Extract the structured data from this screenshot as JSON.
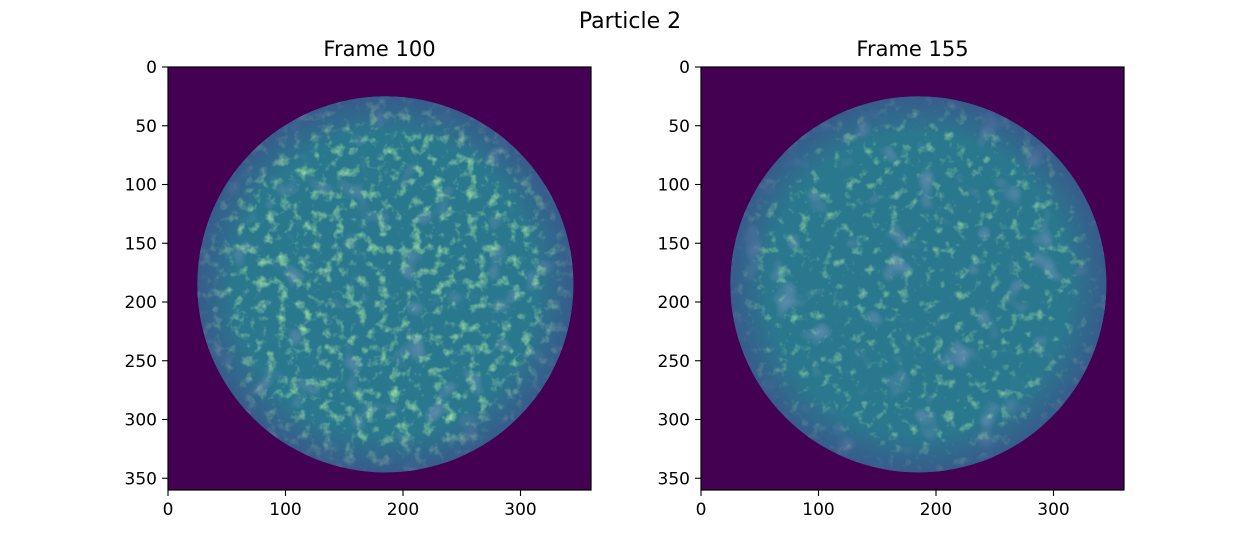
{
  "suptitle": "Particle 2",
  "chart_data": [
    {
      "type": "heatmap",
      "title": "Frame 100",
      "xlabel": "",
      "ylabel": "",
      "colormap": "viridis",
      "xlim": [
        0,
        360
      ],
      "ylim": [
        360,
        0
      ],
      "xticks": [
        0,
        100,
        200,
        300
      ],
      "yticks": [
        0,
        50,
        100,
        150,
        200,
        250,
        300,
        350
      ],
      "disk": {
        "center_x": 185,
        "center_y": 185,
        "radius": 160
      },
      "background_level": 0.0,
      "disk_mean_level": 0.52
    },
    {
      "type": "heatmap",
      "title": "Frame 155",
      "xlabel": "",
      "ylabel": "",
      "colormap": "viridis",
      "xlim": [
        0,
        360
      ],
      "ylim": [
        360,
        0
      ],
      "xticks": [
        0,
        100,
        200,
        300
      ],
      "yticks": [
        0,
        50,
        100,
        150,
        200,
        250,
        300,
        350
      ],
      "disk": {
        "center_x": 185,
        "center_y": 185,
        "radius": 160
      },
      "background_level": 0.0,
      "disk_mean_level": 0.46
    }
  ],
  "colors": {
    "background": "#440154",
    "disk_base": "#2a788e",
    "disk_bright": "#5ec962",
    "disk_edge": "#3b528b"
  }
}
